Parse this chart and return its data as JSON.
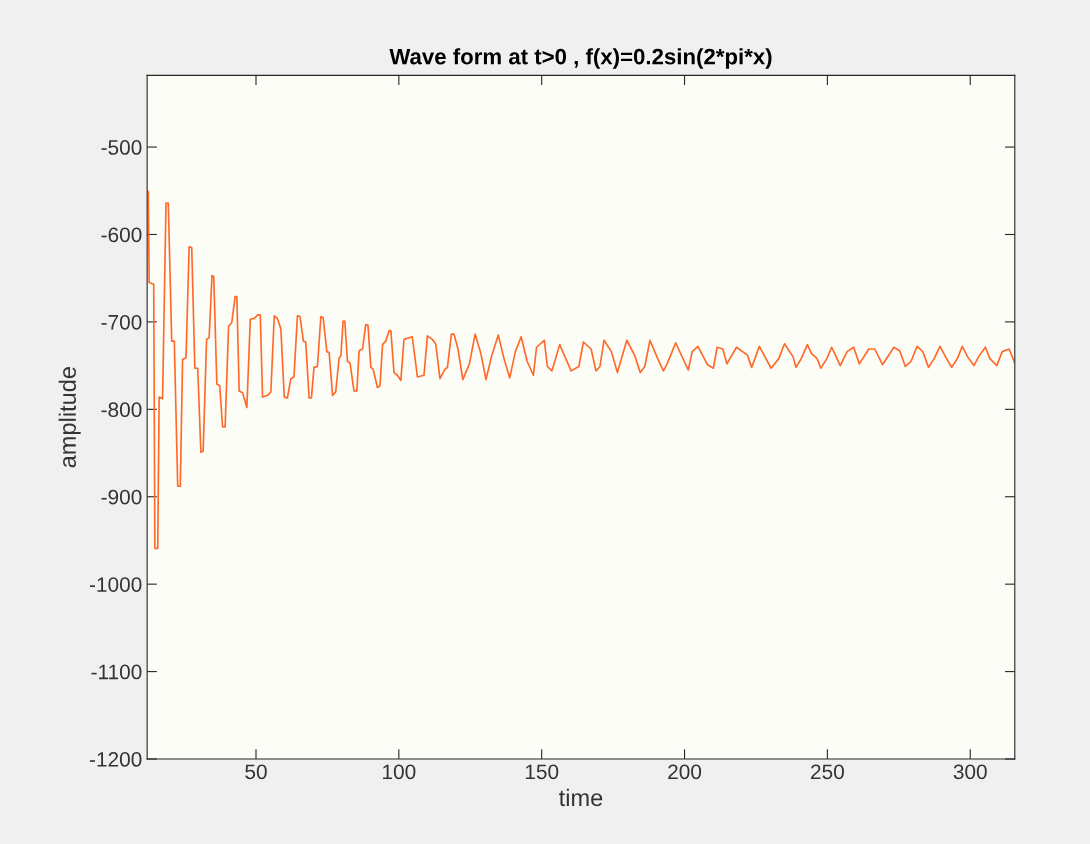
{
  "chart_data": {
    "type": "line",
    "title": "Wave form at t>0 , f(x)=0.2sin(2*pi*x)",
    "xlabel": "time",
    "ylabel": "amplitude",
    "xlim": [
      11.9,
      315.6
    ],
    "ylim": [
      -1200,
      -418
    ],
    "xticks": [
      50,
      100,
      150,
      200,
      250,
      300
    ],
    "yticks": [
      -1200,
      -1100,
      -1000,
      -900,
      -800,
      -700,
      -600,
      -500
    ],
    "series": [
      {
        "color": "#ff6a2a",
        "x": [
          12.3,
          12.6,
          14.2,
          14.6,
          15.6,
          16.1,
          17.3,
          18.5,
          19.3,
          20.5,
          21.4,
          22.6,
          23.5,
          24.3,
          25.5,
          26.6,
          27.5,
          28.6,
          29.6,
          30.7,
          31.5,
          32.7,
          33.6,
          34.6,
          35.2,
          36.3,
          37.3,
          38.3,
          39.2,
          40.4,
          41.5,
          42.7,
          43.3,
          44.1,
          45.3,
          46.8,
          48,
          49.4,
          50.6,
          51.5,
          52.3,
          54.1,
          55.2,
          56.4,
          57.5,
          58.7,
          59.9,
          61,
          62.2,
          63.3,
          64.5,
          65.4,
          66.6,
          67.4,
          68.6,
          69.4,
          70.3,
          71.5,
          72.7,
          73.5,
          74.8,
          75.6,
          76.8,
          77.9,
          79.1,
          79.7,
          80.5,
          81.1,
          82,
          82.9,
          84.3,
          85.3,
          86.1,
          87.3,
          88.4,
          89.2,
          90.2,
          91,
          92.5,
          93.4,
          94.3,
          95.4,
          96.6,
          97.2,
          98.3,
          99.5,
          100.7,
          101.8,
          104.7,
          106.5,
          108.8,
          110,
          111.7,
          112.9,
          114.4,
          116,
          117,
          118.4,
          119.3,
          120.7,
          122.4,
          124.7,
          126.7,
          128.7,
          130.5,
          132.4,
          134.8,
          136.8,
          138.8,
          140.8,
          142.8,
          144.9,
          147.1,
          148.2,
          150.9,
          152,
          153.6,
          156.3,
          160.3,
          163,
          164.6,
          167.3,
          169,
          170.4,
          171.8,
          174.4,
          176.5,
          179.8,
          182.5,
          184.5,
          186.1,
          187.9,
          190.6,
          192.6,
          193.9,
          196.9,
          199.6,
          201.3,
          202.7,
          204.7,
          208,
          210.1,
          211.4,
          213.4,
          214.8,
          218.2,
          222,
          223.5,
          226.2,
          230.3,
          233,
          235,
          238,
          239,
          240.7,
          243,
          244.4,
          246.4,
          247.7,
          249.8,
          251.5,
          253.1,
          254.5,
          256.9,
          259.2,
          261.2,
          264.5,
          266.6,
          269.3,
          273.3,
          275.3,
          277.3,
          279.3,
          281.4,
          283.4,
          285.4,
          287.4,
          289.4,
          291.4,
          293.5,
          295.5,
          297.2,
          299.1,
          301.3,
          302.9,
          305.3,
          306.9,
          309.3,
          311.2,
          313.6,
          315.6
        ],
        "values": [
          -551,
          -655,
          -657,
          -959,
          -959,
          -786,
          -788,
          -564,
          -564,
          -722,
          -722,
          -888,
          -888,
          -743,
          -741,
          -614,
          -615,
          -753,
          -753,
          -849,
          -848,
          -720,
          -718,
          -647,
          -648,
          -771,
          -773,
          -820,
          -820,
          -705,
          -701,
          -671,
          -671,
          -779,
          -781,
          -798,
          -697,
          -696,
          -692,
          -692,
          -786,
          -784,
          -780,
          -693,
          -696,
          -708,
          -786,
          -787,
          -765,
          -763,
          -693,
          -694,
          -722,
          -723,
          -787,
          -787,
          -752,
          -751,
          -694,
          -695,
          -734,
          -735,
          -784,
          -780,
          -741,
          -739,
          -699,
          -699,
          -745,
          -747,
          -779,
          -779,
          -733,
          -731,
          -703,
          -704,
          -752,
          -754,
          -775,
          -773,
          -726,
          -722,
          -710,
          -710,
          -758,
          -761,
          -767,
          -720,
          -717,
          -763,
          -761,
          -716,
          -720,
          -725,
          -765,
          -755,
          -752,
          -714,
          -714,
          -731,
          -766,
          -748,
          -714,
          -736,
          -766,
          -740,
          -715,
          -742,
          -764,
          -734,
          -717,
          -745,
          -761,
          -729,
          -721,
          -751,
          -756,
          -726,
          -756,
          -751,
          -723,
          -731,
          -756,
          -751,
          -721,
          -734,
          -758,
          -721,
          -738,
          -758,
          -751,
          -721,
          -742,
          -756,
          -748,
          -724,
          -743,
          -755,
          -734,
          -728,
          -749,
          -753,
          -729,
          -731,
          -748,
          -729,
          -738,
          -752,
          -728,
          -753,
          -742,
          -725,
          -740,
          -752,
          -743,
          -726,
          -736,
          -742,
          -753,
          -742,
          -729,
          -740,
          -750,
          -734,
          -729,
          -748,
          -731,
          -731,
          -749,
          -729,
          -733,
          -751,
          -745,
          -728,
          -734,
          -752,
          -742,
          -728,
          -740,
          -752,
          -742,
          -728,
          -740,
          -750,
          -740,
          -729,
          -742,
          -750,
          -734,
          -731,
          -747
        ]
      }
    ]
  }
}
